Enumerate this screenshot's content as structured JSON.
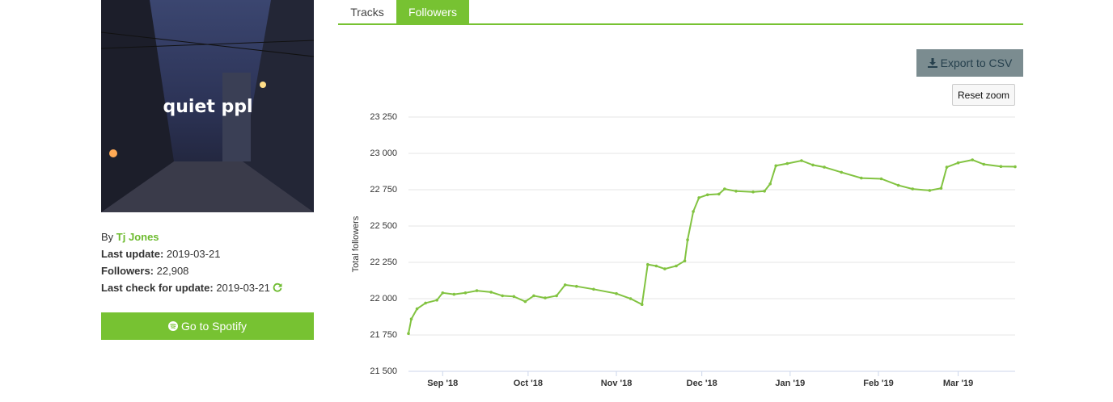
{
  "sidebar": {
    "cover_title": "quiet ppl",
    "by_label": "By",
    "author": "Tj Jones",
    "fields": [
      {
        "label": "Last update:",
        "value": "2019-03-21"
      },
      {
        "label": "Followers:",
        "value": "22,908"
      },
      {
        "label": "Last check for update:",
        "value": "2019-03-21"
      }
    ],
    "button": "Go to Spotify"
  },
  "tabs": [
    "Tracks",
    "Followers"
  ],
  "export_button": "Export to CSV",
  "reset_button": "Reset zoom",
  "chart_data": {
    "type": "line",
    "y_label": "Total followers",
    "color": "#82c341",
    "grid": true,
    "xlim": [
      -12,
      201
    ],
    "xticks": [
      {
        "value": 0,
        "label": "Sep '18"
      },
      {
        "value": 30,
        "label": "Oct '18"
      },
      {
        "value": 61,
        "label": "Nov '18"
      },
      {
        "value": 91,
        "label": "Dec '18"
      },
      {
        "value": 122,
        "label": "Jan '19"
      },
      {
        "value": 153,
        "label": "Feb '19"
      },
      {
        "value": 181,
        "label": "Mar '19"
      }
    ],
    "ylim": [
      21500,
      23250
    ],
    "yticks": [
      {
        "value": 21500,
        "label": "21 500"
      },
      {
        "value": 21750,
        "label": "21 750"
      },
      {
        "value": 22000,
        "label": "22 000"
      },
      {
        "value": 22250,
        "label": "22 250"
      },
      {
        "value": 22500,
        "label": "22 500"
      },
      {
        "value": 22750,
        "label": "22 750"
      },
      {
        "value": 23000,
        "label": "23 000"
      },
      {
        "value": 23250,
        "label": "23 250"
      }
    ],
    "x": [
      -12,
      -11,
      -9,
      -6,
      -2,
      0,
      4,
      8,
      12,
      17,
      21,
      25,
      29,
      32,
      36,
      40,
      43,
      47,
      53,
      61,
      66,
      70,
      72,
      75,
      78,
      82,
      85,
      86,
      88,
      90,
      93,
      97,
      99,
      103,
      109,
      113,
      115,
      117,
      121,
      126,
      130,
      134,
      140,
      147,
      154,
      160,
      165,
      171,
      175,
      177,
      181,
      186,
      190,
      196,
      201
    ],
    "values": [
      21760,
      21860,
      21930,
      21970,
      21990,
      22040,
      22030,
      22040,
      22055,
      22045,
      22020,
      22015,
      21980,
      22020,
      22005,
      22020,
      22095,
      22085,
      22065,
      22035,
      22000,
      21960,
      22235,
      22225,
      22205,
      22225,
      22260,
      22405,
      22600,
      22695,
      22715,
      22720,
      22755,
      22740,
      22735,
      22740,
      22790,
      22915,
      22930,
      22950,
      22920,
      22905,
      22870,
      22830,
      22825,
      22780,
      22755,
      22745,
      22760,
      22905,
      22935,
      22955,
      22925,
      22910,
      22908
    ]
  }
}
